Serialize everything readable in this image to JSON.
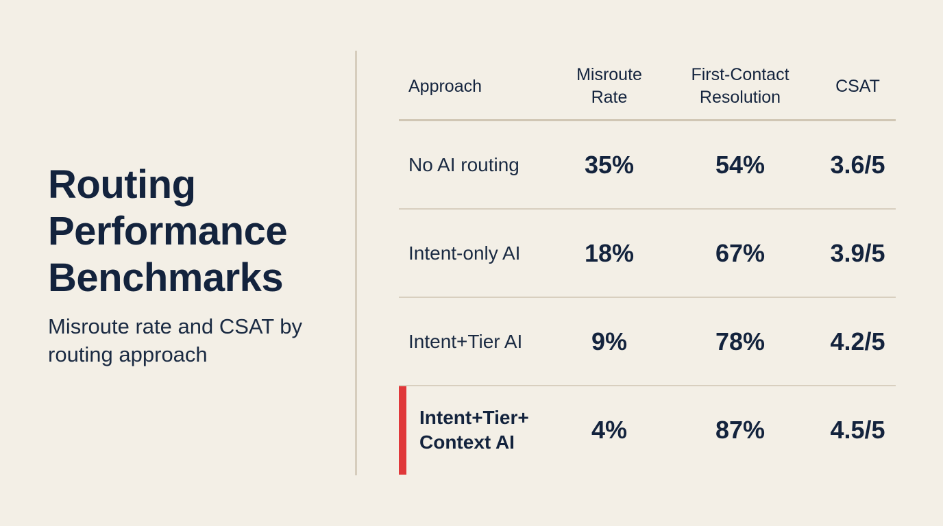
{
  "title_lines": [
    "Routing",
    "Performance",
    "Benchmarks"
  ],
  "subtitle": "Misroute rate and CSAT by routing approach",
  "colors": {
    "background": "#f3efe6",
    "text": "#13233d",
    "accent": "#e0383a",
    "divider": "#d8cfbf"
  },
  "chart_data": {
    "type": "table",
    "columns": [
      "Approach",
      "Misroute Rate",
      "First-Contact Resolution",
      "CSAT"
    ],
    "rows": [
      {
        "approach": "No AI routing",
        "misroute_rate": "35%",
        "first_contact_resolution": "54%",
        "csat": "3.6/5"
      },
      {
        "approach": "Intent-only AI",
        "misroute_rate": "18%",
        "first_contact_resolution": "67%",
        "csat": "3.9/5"
      },
      {
        "approach": "Intent+Tier AI",
        "misroute_rate": "9%",
        "first_contact_resolution": "78%",
        "csat": "4.2/5"
      },
      {
        "approach": "Intent+Tier+ Context AI",
        "misroute_rate": "4%",
        "first_contact_resolution": "87%",
        "csat": "4.5/5",
        "highlighted": true
      }
    ]
  }
}
